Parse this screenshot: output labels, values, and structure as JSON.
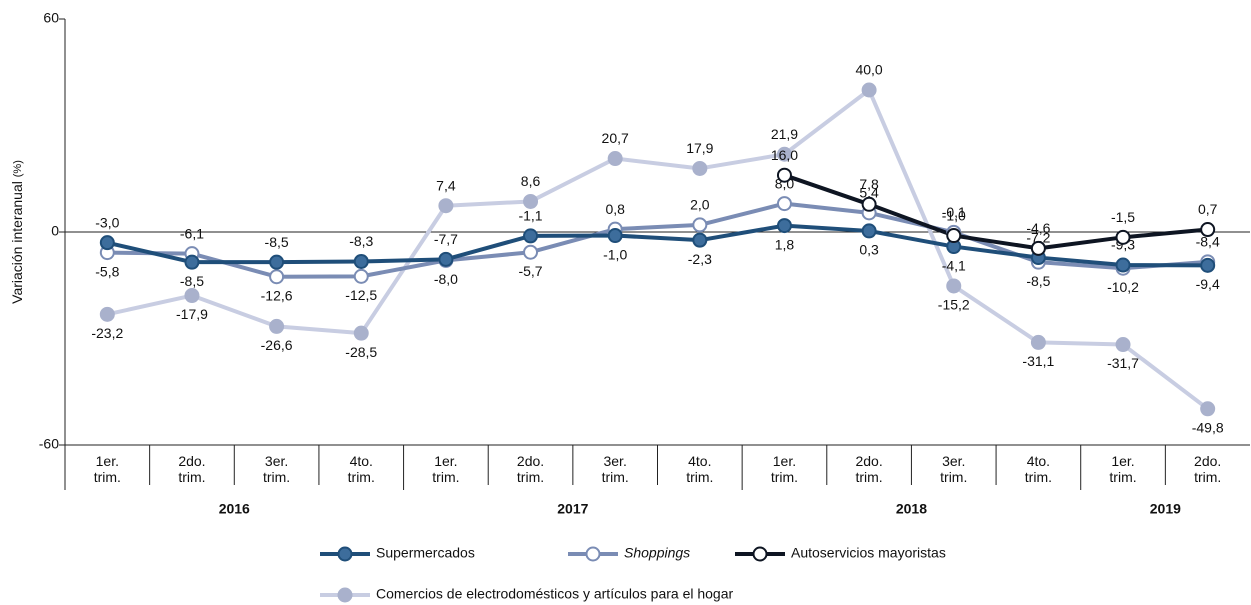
{
  "chart_data": {
    "type": "line",
    "y_label": "Variación interanual",
    "y_unit": "(%)",
    "categories": [
      "1er. trim.",
      "2do. trim.",
      "3er. trim.",
      "4to. trim.",
      "1er. trim.",
      "2do. trim.",
      "3er. trim.",
      "4to. trim.",
      "1er. trim.",
      "2do. trim.",
      "3er. trim.",
      "4to. trim.",
      "1er. trim.",
      "2do. trim."
    ],
    "category_years": [
      "2016",
      "2016",
      "2016",
      "2016",
      "2017",
      "2017",
      "2017",
      "2017",
      "2018",
      "2018",
      "2018",
      "2018",
      "2019",
      "2019"
    ],
    "ylim": [
      -60,
      60
    ],
    "yticks": [
      -60,
      0,
      60
    ],
    "series": [
      {
        "name": "Supermercados",
        "color": "#1f4e79",
        "marker_fill": "#3d6d9c",
        "values": [
          -3.0,
          -8.5,
          -8.5,
          -8.3,
          -7.7,
          -1.1,
          -1.0,
          -2.3,
          1.8,
          0.3,
          -4.1,
          -7.2,
          -9.3,
          -9.4
        ],
        "value_labels": [
          "-3,0",
          "-8,5",
          "-8,5",
          "-8,3",
          "-7,7",
          "-1,1",
          "-1,0",
          "-2,3",
          "1,8",
          "0,3",
          "-4,1",
          "-7,2",
          "-9,3",
          "-9,4"
        ]
      },
      {
        "name": "Shoppings",
        "italic": true,
        "color": "#7a8cb4",
        "marker_fill": "#ffffff",
        "values": [
          -5.8,
          -6.1,
          -12.6,
          -12.5,
          -8.0,
          -5.7,
          0.8,
          2.0,
          8.0,
          5.4,
          -0.1,
          -8.5,
          -10.2,
          -8.4
        ],
        "value_labels": [
          "-5,8",
          "-6,1",
          "-12,6",
          "-12,5",
          "-8,0",
          "-5,7",
          "0,8",
          "2,0",
          "8,0",
          "5,4",
          "-0,1",
          "-8,5",
          "-10,2",
          "-8,4"
        ]
      },
      {
        "name": "Autoservicios mayoristas",
        "color": "#0e1522",
        "marker_fill": "#ffffff",
        "values": [
          null,
          null,
          null,
          null,
          null,
          null,
          null,
          null,
          16.0,
          7.8,
          -1.0,
          -4.6,
          -1.5,
          0.7
        ],
        "value_labels": [
          null,
          null,
          null,
          null,
          null,
          null,
          null,
          null,
          "16,0",
          "7,8",
          "-1,0",
          "-4,6",
          "-1,5",
          "0,7"
        ]
      },
      {
        "name": "Comercios de electrodomésticos y artículos para el hogar",
        "color": "#c8cde2",
        "marker_fill": "#a9b1cc",
        "values": [
          -23.2,
          -17.9,
          -26.6,
          -28.5,
          7.4,
          8.6,
          20.7,
          17.9,
          21.9,
          40.0,
          -15.2,
          -31.1,
          -31.7,
          -49.8
        ],
        "value_labels": [
          "-23,2",
          "-17,9",
          "-26,6",
          "-28,5",
          "7,4",
          "8,6",
          "20,7",
          "17,9",
          "21,9",
          "40,0",
          "-15,2",
          "-31,1",
          "-31,7",
          "-49,8"
        ]
      }
    ]
  }
}
